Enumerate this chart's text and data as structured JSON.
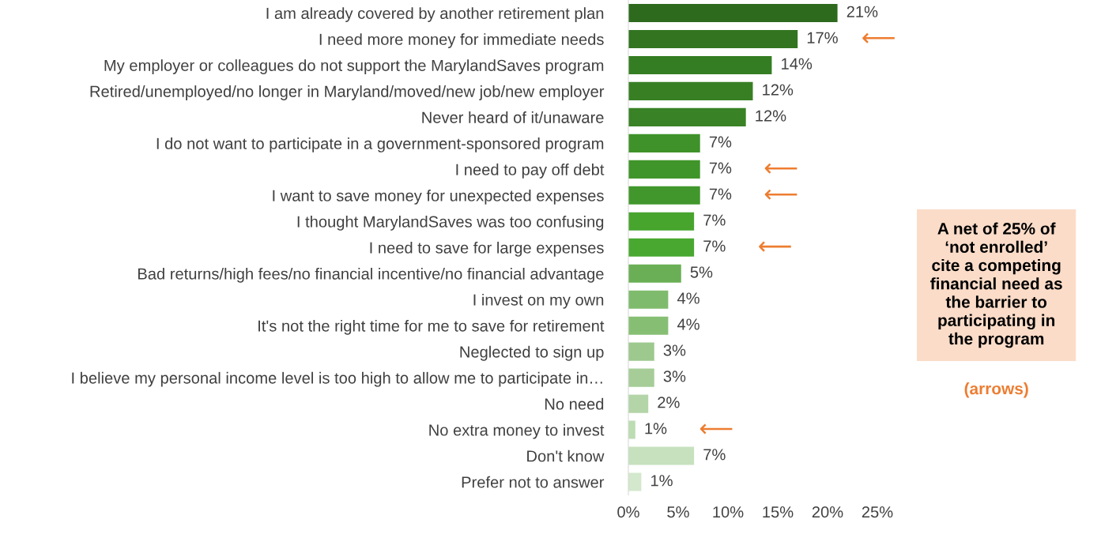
{
  "chart_data": {
    "type": "bar",
    "orientation": "horizontal",
    "categories": [
      "I am already covered by another retirement plan",
      "I need more money for immediate needs",
      "My employer or colleagues do not support the MarylandSaves program",
      "Retired/unemployed/no longer in Maryland/moved/new job/new employer",
      "Never heard of it/unaware",
      "I do not want to participate in a government-sponsored program",
      "I need to pay off debt",
      "I want to save money for unexpected expenses",
      "I thought MarylandSaves was too confusing",
      "I need to save for large expenses",
      "Bad returns/high fees/no financial incentive/no financial advantage",
      "I invest on my own",
      "It's not the right time for me to save for retirement",
      "Neglected to sign up",
      "I believe my personal income level is too high to allow me to participate in…",
      "No need",
      "No extra money to invest",
      "Don't know",
      "Prefer not to answer"
    ],
    "values": [
      21.0,
      17.0,
      14.4,
      12.5,
      11.8,
      7.2,
      7.2,
      7.2,
      6.6,
      6.6,
      5.3,
      4.0,
      4.0,
      2.6,
      2.6,
      2.0,
      0.7,
      6.6,
      1.3
    ],
    "value_labels": [
      "21%",
      "17%",
      "14%",
      "12%",
      "12%",
      "7%",
      "7%",
      "7%",
      "7%",
      "7%",
      "5%",
      "4%",
      "4%",
      "3%",
      "3%",
      "2%",
      "1%",
      "7%",
      "1%"
    ],
    "colors": [
      "#2e6a1e",
      "#327420",
      "#357d22",
      "#387f24",
      "#398225",
      "#3f9229",
      "#40952a",
      "#41972b",
      "#47a52e",
      "#48a830",
      "#6aaf55",
      "#7fbb6c",
      "#86bf73",
      "#9dc98e",
      "#a6cd97",
      "#b3d5a7",
      "#bcdcb2",
      "#c7e1bf",
      "#d3e8cc"
    ],
    "xlim": [
      0,
      25
    ],
    "xticks": [
      {
        "value": 0,
        "label": "0%"
      },
      {
        "value": 5,
        "label": "5%"
      },
      {
        "value": 10,
        "label": "10%"
      },
      {
        "value": 15,
        "label": "15%"
      },
      {
        "value": 20,
        "label": "20%"
      },
      {
        "value": 25,
        "label": "25%"
      }
    ],
    "grid": false,
    "annotations": [
      {
        "text": "⟵",
        "x": 17.0,
        "y": "I need more money for immediate needs"
      },
      {
        "text": "⟵",
        "x": 7.2,
        "y": "I need to pay off debt"
      },
      {
        "text": "⟵",
        "x": 7.2,
        "y": "I want to save money for unexpected expenses"
      },
      {
        "text": "⟵",
        "x": 6.6,
        "y": "I need to save for large expenses"
      },
      {
        "text": "⟵",
        "x": 0.7,
        "y": "No extra money to invest"
      },
      "A net of 25% of\n‘not enrolled’\ncite a competing\nfinancial need as\nthe barrier to\nparticipating in\nthe program",
      "(arrows)"
    ]
  }
}
